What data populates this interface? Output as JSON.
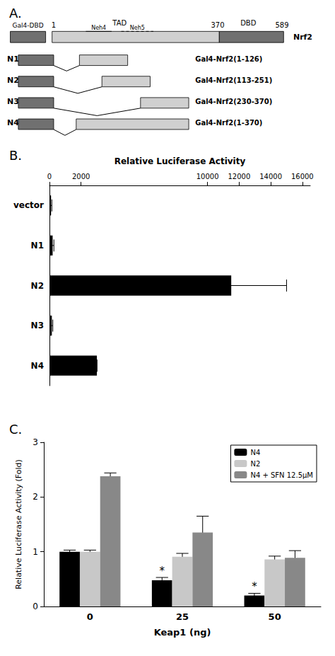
{
  "chart_data": [
    {
      "type": "diagram",
      "title": "A.",
      "categories": [
        "N1",
        "N2",
        "N3",
        "N4"
      ],
      "annotations": [
        "Gal4-DBD",
        "1",
        "TAD",
        "Neh4",
        "Neh5",
        "370",
        "DBD",
        "589",
        "Nrf2",
        "Gal4-Nrf2(1-126)",
        "Gal4-Nrf2(113-251)",
        "Gal4-Nrf2(230-370)",
        "Gal4-Nrf2(1-370)"
      ],
      "colors": [
        "#707070",
        "#d0d0d0"
      ]
    },
    {
      "type": "bar",
      "orientation": "horizontal",
      "title": "B.",
      "xlabel": "Relative Luciferase Activity",
      "categories": [
        "vector",
        "N1",
        "N2",
        "N3",
        "N4"
      ],
      "values": [
        100,
        200,
        11500,
        150,
        3000
      ],
      "errors": [
        50,
        80,
        3500,
        60,
        0
      ],
      "color": "#000000",
      "xlim": [
        0,
        16500
      ],
      "xticks": [
        0,
        2000,
        10000,
        12000,
        14000,
        16000
      ],
      "grid": false
    },
    {
      "type": "bar",
      "title": "C.",
      "xlabel": "Keap1 (ng)",
      "ylabel": "Relative Luciferase Activity (Fold)",
      "categories": [
        "0",
        "25",
        "50"
      ],
      "series": [
        {
          "name": "N4",
          "color": "#000000",
          "values": [
            1.0,
            0.48,
            0.2
          ],
          "errors": [
            0.03,
            0.05,
            0.04
          ]
        },
        {
          "name": "N2",
          "color": "#c8c8c8",
          "values": [
            1.0,
            0.91,
            0.86
          ],
          "errors": [
            0.03,
            0.06,
            0.06
          ]
        },
        {
          "name": "N4 + SFN 12.5μM",
          "color": "#888888",
          "values": [
            2.38,
            1.35,
            0.89
          ],
          "errors": [
            0.06,
            0.3,
            0.13
          ]
        }
      ],
      "annotations": [
        {
          "text": "*",
          "series": "N4",
          "category": "25"
        },
        {
          "text": "*",
          "series": "N4",
          "category": "50"
        }
      ],
      "ylim": [
        0,
        3.0
      ],
      "yticks": [
        0,
        1,
        2,
        3
      ],
      "legend": "upper right",
      "grid": false
    }
  ]
}
